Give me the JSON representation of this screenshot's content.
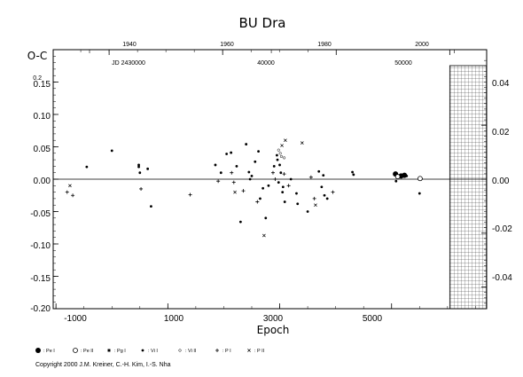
{
  "chart_data": {
    "type": "scatter",
    "title": "BU Dra",
    "ylabel": "O-C",
    "xlabel": "Epoch",
    "xlim": [
      -1050,
      6700
    ],
    "ylim": [
      -0.2,
      0.2
    ],
    "y2lim": [
      -0.048,
      0.048
    ],
    "x_ticks": [
      "-1000",
      "1000",
      "3000",
      "5000"
    ],
    "x_tick_values": [
      -1000,
      1000,
      3000,
      5000
    ],
    "y_ticks": [
      "0.15",
      "0.10",
      "0.05",
      "0.00",
      "-0.05",
      "-0.10",
      "-0.15",
      "-0.20"
    ],
    "y_tick_values": [
      0.15,
      0.1,
      0.05,
      0.0,
      -0.05,
      -0.1,
      -0.15,
      -0.2
    ],
    "y_top_label": "0.2",
    "y2_ticks": [
      "0.02",
      "0.00",
      "-0.02",
      "-0.04"
    ],
    "y2_tick_values": [
      0.02,
      0.0,
      -0.02,
      -0.04
    ],
    "y2_top_label": "0.04",
    "year_ticks": [
      "1940",
      "1960",
      "1980",
      "2000"
    ],
    "year_tick_epochs": [
      -50,
      1980,
      4010,
      6040
    ],
    "jd_ticks": [
      "JD 2430000",
      "40000",
      "50000"
    ],
    "jd_tick_epochs": [
      -400,
      2850,
      6120
    ],
    "future_region_start": 6040,
    "legend": [
      {
        "symbol": "pe-i",
        "label": ": Pe I"
      },
      {
        "symbol": "pe-ii",
        "label": ": Pe II"
      },
      {
        "symbol": "pg-i",
        "label": ": Pg I"
      },
      {
        "symbol": "vi-i",
        "label": ": Vi I"
      },
      {
        "symbol": "vi-ii",
        "label": ": Vi II"
      },
      {
        "symbol": "p-i",
        "label": ": P I"
      },
      {
        "symbol": "p-ii",
        "label": ": P II"
      }
    ],
    "series": [
      {
        "symbol": "vi-i",
        "points": [
          [
            -450,
            0.019
          ],
          [
            0,
            0.044
          ],
          [
            480,
            0.022
          ],
          [
            480,
            0.019
          ],
          [
            500,
            0.01
          ],
          [
            640,
            0.016
          ],
          [
            700,
            -0.042
          ],
          [
            1850,
            0.022
          ],
          [
            1950,
            0.01
          ],
          [
            2050,
            0.039
          ],
          [
            2130,
            0.041
          ],
          [
            2230,
            0.02
          ],
          [
            2300,
            -0.066
          ],
          [
            2400,
            0.054
          ],
          [
            2450,
            0.011
          ],
          [
            2470,
            0.0
          ],
          [
            2500,
            0.005
          ],
          [
            2560,
            0.027
          ],
          [
            2620,
            0.043
          ],
          [
            2650,
            -0.03
          ],
          [
            2700,
            -0.014
          ],
          [
            2750,
            -0.06
          ],
          [
            2800,
            -0.01
          ],
          [
            2900,
            0.02
          ],
          [
            2950,
            0.037
          ],
          [
            2960,
            0.03
          ],
          [
            2980,
            -0.005
          ],
          [
            3000,
            0.022
          ],
          [
            3020,
            0.01
          ],
          [
            3050,
            -0.02
          ],
          [
            3060,
            -0.012
          ],
          [
            3090,
            -0.035
          ],
          [
            3200,
            0.0
          ],
          [
            3300,
            -0.022
          ],
          [
            3320,
            -0.038
          ],
          [
            3500,
            -0.05
          ],
          [
            3700,
            0.012
          ],
          [
            3750,
            -0.012
          ],
          [
            3780,
            0.006
          ],
          [
            3800,
            -0.025
          ],
          [
            3850,
            -0.03
          ],
          [
            4300,
            0.011
          ],
          [
            4320,
            0.007
          ],
          [
            5080,
            -0.003
          ],
          [
            5270,
            0.005
          ],
          [
            5500,
            -0.022
          ]
        ]
      },
      {
        "symbol": "p-i",
        "points": [
          [
            -800,
            -0.02
          ],
          [
            -700,
            -0.025
          ],
          [
            520,
            -0.015
          ],
          [
            1400,
            -0.024
          ],
          [
            1900,
            -0.003
          ],
          [
            2140,
            0.01
          ],
          [
            2180,
            -0.005
          ],
          [
            2350,
            -0.018
          ],
          [
            2600,
            -0.035
          ],
          [
            2880,
            0.01
          ],
          [
            2920,
            0.0
          ],
          [
            3080,
            0.008
          ],
          [
            3160,
            -0.01
          ],
          [
            3560,
            0.003
          ],
          [
            3950,
            -0.02
          ],
          [
            3620,
            -0.03
          ]
        ]
      },
      {
        "symbol": "p-ii",
        "points": [
          [
            -750,
            -0.01
          ],
          [
            2200,
            -0.02
          ],
          [
            2720,
            -0.087
          ],
          [
            3040,
            0.052
          ],
          [
            3100,
            0.06
          ],
          [
            3400,
            0.056
          ],
          [
            3640,
            -0.04
          ]
        ]
      },
      {
        "symbol": "vi-ii",
        "points": [
          [
            2980,
            0.045
          ],
          [
            3010,
            0.04
          ],
          [
            3030,
            0.035
          ],
          [
            3080,
            0.033
          ]
        ]
      },
      {
        "symbol": "pe-i",
        "points": [
          [
            5070,
            0.008
          ],
          [
            5170,
            0.005
          ],
          [
            5230,
            0.006
          ]
        ]
      },
      {
        "symbol": "pe-ii",
        "points": [
          [
            5110,
            0.004
          ],
          [
            5510,
            0.001
          ]
        ]
      }
    ]
  },
  "footer": {
    "copyright": "Copyright 2000 J.M. Kreiner, C.-H. Kim, I.-S. Nha"
  }
}
